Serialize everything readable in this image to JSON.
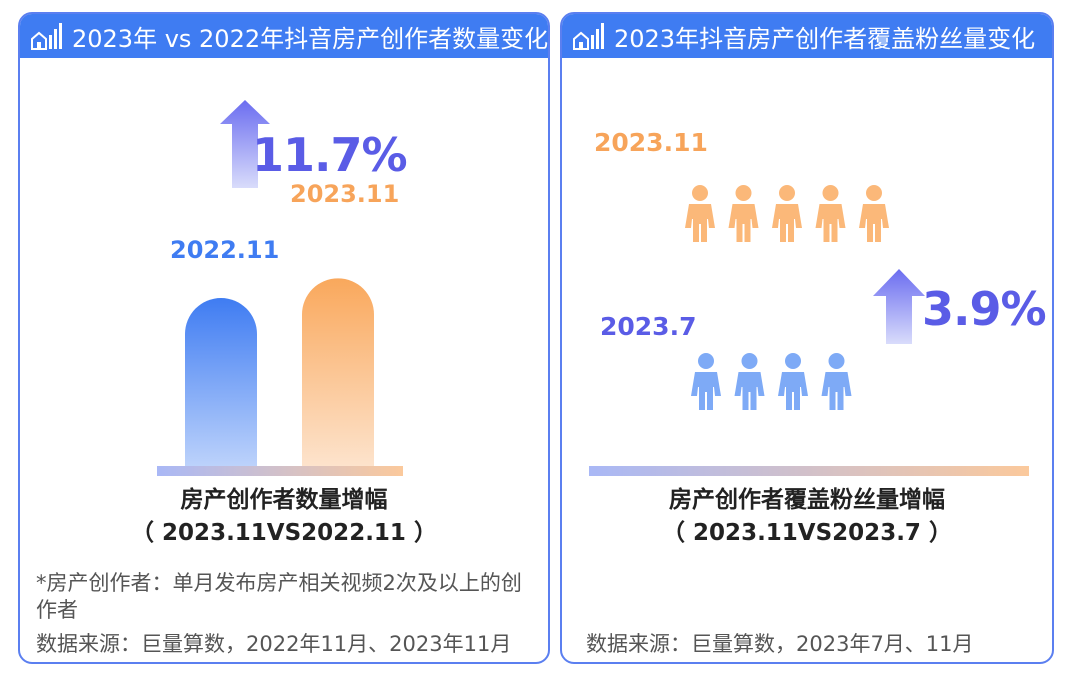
{
  "panels": {
    "left": {
      "title": "2023年 vs 2022年抖音房产创作者数量变化",
      "growth": "11.7%",
      "caption_line1": "房产创作者数量增幅",
      "caption_line2": "（ 2023.11VS2022.11 ）",
      "footnote": "*房产创作者：单月发布房产相关视频2次及以上的创作者",
      "source": "数据来源：巨量算数，2022年11月、2023年11月"
    },
    "right": {
      "title": "2023年抖音房产创作者覆盖粉丝量变化",
      "growth": "3.9%",
      "caption_line1": "房产创作者覆盖粉丝量增幅",
      "caption_line2": "（ 2023.11VS2023.7 ）",
      "source": "数据来源：巨量算数，2023年7月、11月"
    }
  },
  "colors": {
    "header": "#3f7cf2",
    "border": "#5b7ff0",
    "blue": "#3f7cf2",
    "orange": "#f7a45a",
    "purple": "#5a5ce6"
  },
  "chart_data": [
    {
      "type": "bar",
      "categories": [
        "2022.11",
        "2023.11"
      ],
      "values": [
        100,
        111.7
      ],
      "annotation": "11.7%",
      "colors": [
        "#3f7cf2",
        "#f7a45a"
      ],
      "icons": [
        "arrow-up-icon"
      ]
    },
    {
      "type": "pictogram",
      "categories": [
        "2023.7",
        "2023.11"
      ],
      "values": [
        4,
        5
      ],
      "annotation": "3.9%",
      "colors": [
        "#3f7cf2",
        "#f7a45a"
      ],
      "icons": [
        "person-icon",
        "arrow-up-icon"
      ]
    }
  ]
}
